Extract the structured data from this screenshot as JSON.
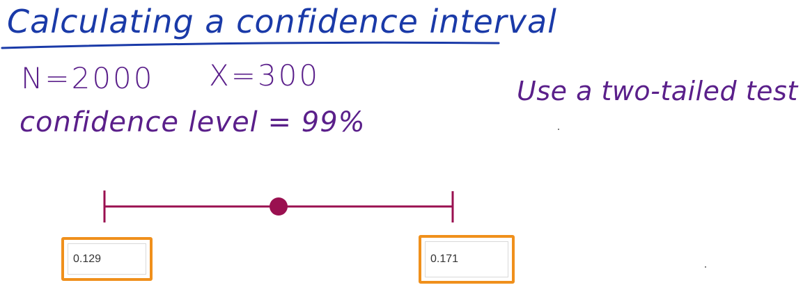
{
  "title": "Calculating a confidence interval",
  "given": {
    "n": "N=2000",
    "x": "X=300",
    "confidence": "confidence level = 99%"
  },
  "note": "Use a two-tailed test",
  "answers": {
    "lower_value": "0.129",
    "upper_value": "0.171"
  },
  "colors": {
    "title_ink": "#1a3aa8",
    "body_ink": "#5a1f8a",
    "interval_line": "#9a1050",
    "answer_border": "#f0901c"
  }
}
